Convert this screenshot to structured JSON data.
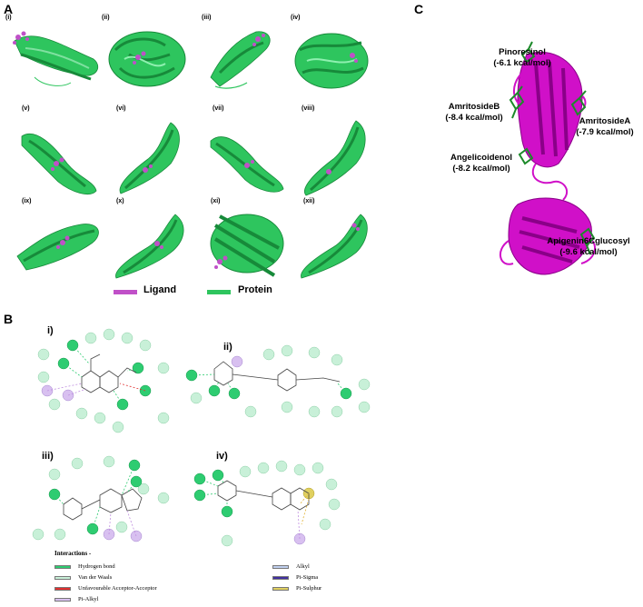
{
  "panel_a": {
    "letter": "A",
    "cells": [
      {
        "label": "(i)"
      },
      {
        "label": "(ii)"
      },
      {
        "label": "(iii)"
      },
      {
        "label": "(iv)"
      },
      {
        "label": "(v)"
      },
      {
        "label": "(vi)"
      },
      {
        "label": "(vii)"
      },
      {
        "label": "(viii)"
      },
      {
        "label": "(ix)"
      },
      {
        "label": "(x)"
      },
      {
        "label": "(xi)"
      },
      {
        "label": "(xii)"
      }
    ],
    "legend": {
      "ligand": "Ligand",
      "protein": "Protein",
      "ligand_color": "#c050c8",
      "protein_color": "#2ec55e"
    }
  },
  "panel_b": {
    "letter": "B",
    "diagrams": [
      {
        "label": "i)"
      },
      {
        "label": "ii)"
      },
      {
        "label": "iii)"
      },
      {
        "label": "iv)"
      }
    ],
    "interactions": {
      "title": "Interactions -",
      "items": [
        {
          "label": "Hydrogen bond",
          "color": "#2ecc71"
        },
        {
          "label": "Van der Waals",
          "color": "#c8f0d8"
        },
        {
          "label": "Unfavourable Acceptor-Acceptor",
          "color": "#e03030"
        },
        {
          "label": "Pi-Alkyl",
          "color": "#d8c0f0"
        },
        {
          "label": "Alkyl",
          "color": "#c0d0f0"
        },
        {
          "label": "Pi-Sigma",
          "color": "#4030a0"
        },
        {
          "label": "Pi-Sulphur",
          "color": "#e0d060"
        }
      ]
    }
  },
  "panel_c": {
    "letter": "C",
    "protein_color": "#d010c8",
    "ligands": [
      {
        "name": "Pinoresinol",
        "energy": "(-6.1 kcal/mol)"
      },
      {
        "name": "AmritosideB",
        "energy": "(-8.4 kcal/mol)"
      },
      {
        "name": "AmritosideA",
        "energy": "(-7.9 kcal/mol)"
      },
      {
        "name": "Angelicoidenol",
        "energy": "(-8.2 kcal/mol)"
      },
      {
        "name": "Apigenin6Cglucosyl",
        "energy": "(-9.6 kcal/mol)"
      }
    ]
  }
}
